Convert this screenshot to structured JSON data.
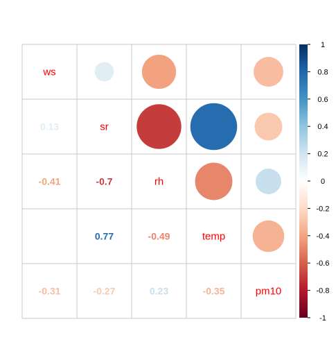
{
  "chart_data": {
    "type": "heatmap",
    "variables": [
      "ws",
      "sr",
      "rh",
      "temp",
      "pm10"
    ],
    "matrix": [
      [
        1,
        0.13,
        -0.41,
        0.01,
        -0.31
      ],
      [
        0.13,
        1,
        -0.7,
        0.77,
        -0.27
      ],
      [
        -0.41,
        -0.7,
        1,
        -0.49,
        0.23
      ],
      [
        0.01,
        0.77,
        -0.49,
        1,
        -0.35
      ],
      [
        -0.31,
        -0.27,
        0.23,
        -0.35,
        1
      ]
    ],
    "lower_labels": [
      {
        "row": 1,
        "col": 0,
        "text": "0.13"
      },
      {
        "row": 2,
        "col": 0,
        "text": "-0.41"
      },
      {
        "row": 2,
        "col": 1,
        "text": "-0.7"
      },
      {
        "row": 3,
        "col": 0,
        "text": "0.01"
      },
      {
        "row": 3,
        "col": 1,
        "text": "0.77"
      },
      {
        "row": 3,
        "col": 2,
        "text": "-0.49"
      },
      {
        "row": 4,
        "col": 0,
        "text": "-0.31"
      },
      {
        "row": 4,
        "col": 1,
        "text": "-0.27"
      },
      {
        "row": 4,
        "col": 2,
        "text": "0.23"
      },
      {
        "row": 4,
        "col": 3,
        "text": "-0.35"
      }
    ],
    "upper_glyph": "circle",
    "diagonal_label_color": "#ff0000",
    "colorbar": {
      "range": [
        -1,
        1
      ],
      "ticks": [
        "1",
        "0.8",
        "0.6",
        "0.4",
        "0.2",
        "0",
        "-0.2",
        "-0.4",
        "-0.6",
        "-0.8",
        "-1"
      ],
      "tick_values": [
        1,
        0.8,
        0.6,
        0.4,
        0.2,
        0,
        -0.2,
        -0.4,
        -0.6,
        -0.8,
        -1
      ],
      "palette": [
        "#67001f",
        "#b2182b",
        "#d6604d",
        "#f4a582",
        "#fddbc7",
        "#ffffff",
        "#d1e5f0",
        "#92c5de",
        "#4393c3",
        "#2166ac",
        "#053061"
      ]
    },
    "grid": true,
    "title": "",
    "xlabel": "",
    "ylabel": ""
  }
}
